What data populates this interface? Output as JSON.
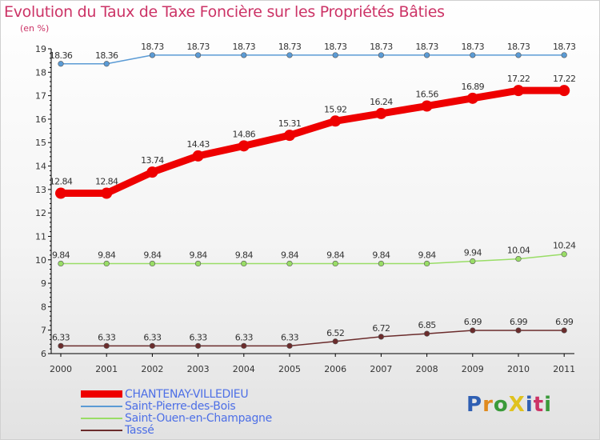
{
  "title": "Evolution du Taux de Taxe Foncière sur les Propriétés Bâties",
  "unit_label": "(en %)",
  "logo": {
    "text": "ProXiti",
    "colors": [
      "#2f5fb3",
      "#e08a1e",
      "#3a9a3a",
      "#e0c21e",
      "#2f5fb3",
      "#cc3366",
      "#3a9a3a"
    ]
  },
  "chart_data": {
    "type": "line",
    "title": "Evolution du Taux de Taxe Foncière sur les Propriétés Bâties",
    "ylabel": "(en %)",
    "xlabel": "",
    "ylim": [
      6,
      19
    ],
    "yticks": [
      6,
      7,
      8,
      9,
      10,
      11,
      12,
      13,
      14,
      15,
      16,
      17,
      18,
      19
    ],
    "grid": false,
    "x": [
      "2000",
      "2001",
      "2002",
      "2003",
      "2004",
      "2005",
      "2006",
      "2007",
      "2008",
      "2009",
      "2010",
      "2011"
    ],
    "series": [
      {
        "name": "CHANTENAY-VILLEDIEU",
        "color": "#ee0000",
        "style": "thick",
        "values": [
          12.84,
          12.84,
          13.74,
          14.43,
          14.86,
          15.31,
          15.92,
          16.24,
          16.56,
          16.89,
          17.22,
          17.22
        ]
      },
      {
        "name": "Saint-Pierre-des-Bois",
        "color": "#5b9bd5",
        "style": "thin",
        "values": [
          18.36,
          18.36,
          18.73,
          18.73,
          18.73,
          18.73,
          18.73,
          18.73,
          18.73,
          18.73,
          18.73,
          18.73
        ]
      },
      {
        "name": "Saint-Ouen-en-Champagne",
        "color": "#99dd66",
        "style": "thin",
        "values": [
          9.84,
          9.84,
          9.84,
          9.84,
          9.84,
          9.84,
          9.84,
          9.84,
          9.84,
          9.94,
          10.04,
          10.24
        ]
      },
      {
        "name": "Tassé",
        "color": "#6b2c2c",
        "style": "thin",
        "values": [
          6.33,
          6.33,
          6.33,
          6.33,
          6.33,
          6.33,
          6.52,
          6.72,
          6.85,
          6.99,
          6.99,
          6.99
        ]
      }
    ]
  }
}
